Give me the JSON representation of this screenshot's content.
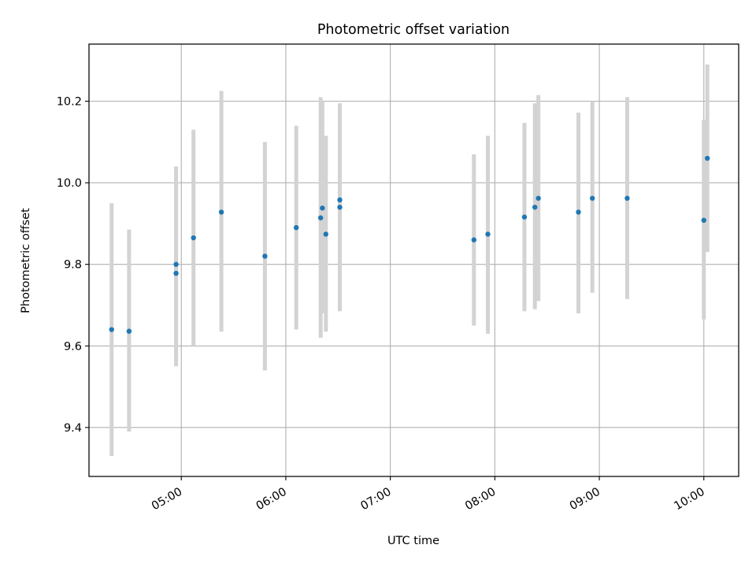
{
  "chart_data": {
    "type": "scatter",
    "title": "Photometric offset variation",
    "xlabel": "UTC time",
    "ylabel": "Photometric offset",
    "x_ticks": [
      "05:00",
      "06:00",
      "07:00",
      "08:00",
      "09:00",
      "10:00"
    ],
    "xlim": [
      "04:07",
      "10:20"
    ],
    "y_ticks": [
      "9.4",
      "9.6",
      "9.8",
      "10.0",
      "10.2"
    ],
    "ylim": [
      9.28,
      10.34
    ],
    "grid": true,
    "colors": {
      "marker": "#1f77b4",
      "errorbar": "#d3d3d3",
      "grid": "#b0b0b0"
    },
    "points": [
      {
        "x": "04:20",
        "y": 9.64,
        "ylow": 9.33,
        "yhigh": 9.95
      },
      {
        "x": "04:30",
        "y": 9.636,
        "ylow": 9.39,
        "yhigh": 9.885
      },
      {
        "x": "04:57",
        "y": 9.8,
        "ylow": 9.565,
        "yhigh": 10.04
      },
      {
        "x": "04:57",
        "y": 9.778,
        "ylow": 9.55,
        "yhigh": 10.0
      },
      {
        "x": "05:07",
        "y": 9.865,
        "ylow": 9.6,
        "yhigh": 10.13
      },
      {
        "x": "05:23",
        "y": 9.928,
        "ylow": 9.635,
        "yhigh": 10.225
      },
      {
        "x": "05:48",
        "y": 9.82,
        "ylow": 9.54,
        "yhigh": 10.1
      },
      {
        "x": "06:06",
        "y": 9.89,
        "ylow": 9.64,
        "yhigh": 10.14
      },
      {
        "x": "06:20",
        "y": 9.914,
        "ylow": 9.62,
        "yhigh": 10.21
      },
      {
        "x": "06:21",
        "y": 9.938,
        "ylow": 9.68,
        "yhigh": 10.2
      },
      {
        "x": "06:23",
        "y": 9.874,
        "ylow": 9.635,
        "yhigh": 10.115
      },
      {
        "x": "06:31",
        "y": 9.94,
        "ylow": 9.685,
        "yhigh": 10.195
      },
      {
        "x": "06:31",
        "y": 9.958,
        "ylow": 9.72,
        "yhigh": 10.19
      },
      {
        "x": "07:48",
        "y": 9.86,
        "ylow": 9.65,
        "yhigh": 10.07
      },
      {
        "x": "07:56",
        "y": 9.874,
        "ylow": 9.63,
        "yhigh": 10.115
      },
      {
        "x": "08:17",
        "y": 9.916,
        "ylow": 9.685,
        "yhigh": 10.147
      },
      {
        "x": "08:23",
        "y": 9.94,
        "ylow": 9.69,
        "yhigh": 10.195
      },
      {
        "x": "08:25",
        "y": 9.962,
        "ylow": 9.71,
        "yhigh": 10.215
      },
      {
        "x": "08:48",
        "y": 9.928,
        "ylow": 9.68,
        "yhigh": 10.172
      },
      {
        "x": "08:56",
        "y": 9.962,
        "ylow": 9.73,
        "yhigh": 10.2
      },
      {
        "x": "09:16",
        "y": 9.962,
        "ylow": 9.715,
        "yhigh": 10.21
      },
      {
        "x": "10:00",
        "y": 9.908,
        "ylow": 9.665,
        "yhigh": 10.155
      },
      {
        "x": "10:02",
        "y": 10.06,
        "ylow": 9.83,
        "yhigh": 10.29
      }
    ]
  }
}
